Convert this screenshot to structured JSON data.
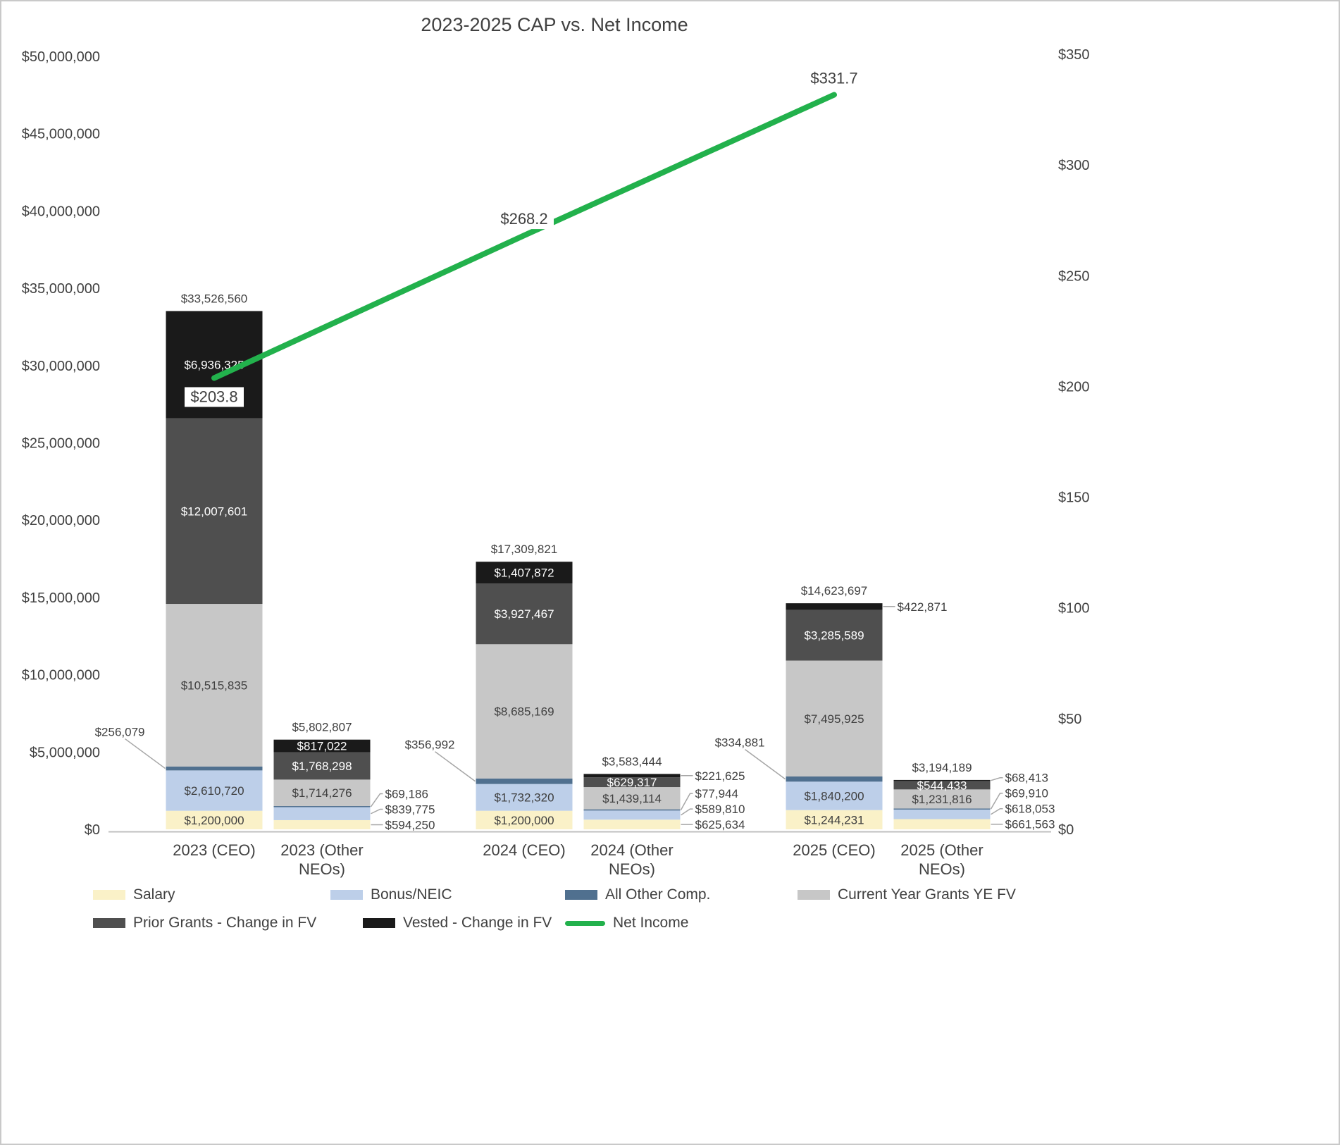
{
  "chart_data": {
    "type": "bar",
    "variant": "stacked-column-with-line",
    "title": "2023-2025 CAP vs. Net Income",
    "categories": [
      "2023 (CEO)",
      "2023 (Other NEOs)",
      "2024 (CEO)",
      "2024 (Other NEOs)",
      "2025 (CEO)",
      "2025 (Other NEOs)"
    ],
    "category_label_lines": [
      [
        "2023 (CEO)"
      ],
      [
        "2023 (Other",
        "NEOs)"
      ],
      [
        "2024 (CEO)"
      ],
      [
        "2024 (Other",
        "NEOs)"
      ],
      [
        "2025 (CEO)"
      ],
      [
        "2025 (Other",
        "NEOs)"
      ]
    ],
    "series": [
      {
        "name": "Salary",
        "color": "#faf1c8",
        "label_color": "#3f3f3f",
        "values": [
          1200000,
          594250,
          1200000,
          625634,
          1244231,
          661563
        ],
        "value_labels": [
          "$1,200,000",
          "$594,250",
          "$1,200,000",
          "$625,634",
          "$1,244,231",
          "$661,563"
        ]
      },
      {
        "name": "Bonus/NEIC",
        "color": "#bdcfe9",
        "label_color": "#3f3f3f",
        "values": [
          2610720,
          839775,
          1732320,
          589810,
          1840200,
          618053
        ],
        "value_labels": [
          "$2,610,720",
          "$839,775",
          "$1,732,320",
          "$589,810",
          "$1,840,200",
          "$618,053"
        ]
      },
      {
        "name": "All Other Comp.",
        "color": "#50708f",
        "label_color": "#ffffff",
        "values": [
          256079,
          69186,
          356992,
          77944,
          334881,
          69910
        ],
        "value_labels": [
          "$256,079",
          "$69,186",
          "$356,992",
          "$77,944",
          "$334,881",
          "$69,910"
        ]
      },
      {
        "name": "Current Year Grants YE FV",
        "color": "#c7c7c7",
        "label_color": "#3f3f3f",
        "values": [
          10515835,
          1714276,
          8685169,
          1439114,
          7495925,
          1231816
        ],
        "value_labels": [
          "$10,515,835",
          "$1,714,276",
          "$8,685,169",
          "$1,439,114",
          "$7,495,925",
          "$1,231,816"
        ]
      },
      {
        "name": "Prior Grants - Change in FV",
        "color": "#4f4f4f",
        "label_color": "#ffffff",
        "values": [
          12007601,
          1768298,
          3927467,
          629317,
          3285589,
          544433
        ],
        "value_labels": [
          "$12,007,601",
          "$1,768,298",
          "$3,927,467",
          "$629,317",
          "$3,285,589",
          "$544,433"
        ]
      },
      {
        "name": "Vested - Change in FV",
        "color": "#1a1a1a",
        "label_color": "#ffffff",
        "values": [
          6936325,
          817022,
          1407872,
          221625,
          422871,
          68413
        ],
        "value_labels": [
          "$6,936,325",
          "$817,022",
          "$1,407,872",
          "$221,625",
          "$422,871",
          "$68,413"
        ]
      }
    ],
    "totals": [
      33526560,
      5802807,
      17309821,
      3583444,
      14623697,
      3194189
    ],
    "total_labels": [
      "$33,526,560",
      "$5,802,807",
      "$17,309,821",
      "$3,583,444",
      "$14,623,697",
      "$3,194,189"
    ],
    "line_series": {
      "name": "Net Income",
      "axis": "right",
      "color": "#22b14c",
      "x_categories": [
        "2023 (CEO)",
        "2024 (CEO)",
        "2025 (CEO)"
      ],
      "values": [
        203.8,
        268.2,
        331.7
      ],
      "value_labels": [
        "$203.8",
        "$268.2",
        "$331.7"
      ]
    },
    "left_axis": {
      "min": 0,
      "max": 50000000,
      "step": 5000000,
      "tick_labels": [
        "$0",
        "$5,000,000",
        "$10,000,000",
        "$15,000,000",
        "$20,000,000",
        "$25,000,000",
        "$30,000,000",
        "$35,000,000",
        "$40,000,000",
        "$45,000,000",
        "$50,000,000"
      ]
    },
    "right_axis": {
      "min": 0,
      "max": 350,
      "step": 50,
      "tick_labels": [
        "$0",
        "$50",
        "$100",
        "$150",
        "$200",
        "$250",
        "$300",
        "$350"
      ]
    },
    "grid": false,
    "legend_position": "bottom",
    "external_value_labels": [
      {
        "bar": 0,
        "series": 2,
        "side": "left"
      },
      {
        "bar": 1,
        "series": 0,
        "side": "right"
      },
      {
        "bar": 1,
        "series": 1,
        "side": "right"
      },
      {
        "bar": 1,
        "series": 2,
        "side": "right"
      },
      {
        "bar": 2,
        "series": 2,
        "side": "left"
      },
      {
        "bar": 3,
        "series": 0,
        "side": "right"
      },
      {
        "bar": 3,
        "series": 1,
        "side": "right"
      },
      {
        "bar": 3,
        "series": 2,
        "side": "right"
      },
      {
        "bar": 3,
        "series": 5,
        "side": "right"
      },
      {
        "bar": 4,
        "series": 2,
        "side": "left"
      },
      {
        "bar": 4,
        "series": 5,
        "side": "right"
      },
      {
        "bar": 5,
        "series": 0,
        "side": "right"
      },
      {
        "bar": 5,
        "series": 1,
        "side": "right"
      },
      {
        "bar": 5,
        "series": 2,
        "side": "right"
      },
      {
        "bar": 5,
        "series": 5,
        "side": "right"
      }
    ],
    "colors": {
      "axis_line": "#bfbfbf",
      "leader_line": "#a6a6a6",
      "text": "#404040"
    }
  }
}
